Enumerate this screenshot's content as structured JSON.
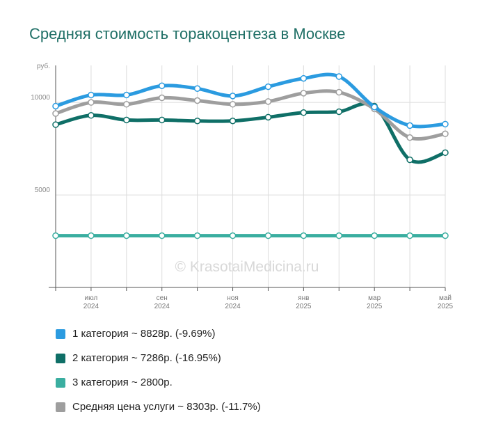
{
  "title": "Средняя стоимость торакоцентеза в Москве",
  "watermark": "© KrasotaiMedicina.ru",
  "chart_data": {
    "type": "line",
    "y_unit": "руб.",
    "ylim": [
      0,
      12000
    ],
    "y_ticks": [
      {
        "value": 5000,
        "label": "5000"
      },
      {
        "value": 10000,
        "label": "10000"
      }
    ],
    "x": [
      "2024-06",
      "2024-07",
      "2024-08",
      "2024-09",
      "2024-10",
      "2024-11",
      "2024-12",
      "2025-01",
      "2025-02",
      "2025-03",
      "2025-04",
      "2025-05"
    ],
    "x_ticks": [
      {
        "index": 1,
        "month": "июл",
        "year": "2024"
      },
      {
        "index": 3,
        "month": "сен",
        "year": "2024"
      },
      {
        "index": 5,
        "month": "ноя",
        "year": "2024"
      },
      {
        "index": 7,
        "month": "янв",
        "year": "2025"
      },
      {
        "index": 9,
        "month": "мар",
        "year": "2025"
      },
      {
        "index": 11,
        "month": "май",
        "year": "2025"
      }
    ],
    "grid": true,
    "legend_position": "bottom",
    "series": [
      {
        "name": "3 категория",
        "color": "#3aaea0",
        "values": [
          2800,
          2800,
          2800,
          2800,
          2800,
          2800,
          2800,
          2800,
          2800,
          2800,
          2800,
          2800
        ]
      },
      {
        "name": "2 категория",
        "color": "#0f6f67",
        "values": [
          8800,
          9300,
          9050,
          9050,
          9000,
          9000,
          9200,
          9450,
          9500,
          9800,
          6900,
          7286
        ]
      },
      {
        "name": "Средняя цена услуги",
        "color": "#9e9e9e",
        "values": [
          9400,
          10000,
          9900,
          10250,
          10100,
          9900,
          10050,
          10500,
          10550,
          9650,
          8100,
          8303
        ]
      },
      {
        "name": "1 категория",
        "color": "#2b9be0",
        "values": [
          9800,
          10400,
          10400,
          10900,
          10750,
          10350,
          10850,
          11300,
          11400,
          9750,
          8750,
          8828
        ]
      }
    ]
  },
  "legend": [
    {
      "color": "#2b9be0",
      "label": "1 категория ~ 8828р. (-9.69%)"
    },
    {
      "color": "#0f6f67",
      "label": "2 категория ~ 7286р. (-16.95%)"
    },
    {
      "color": "#3aaea0",
      "label": "3 категория ~ 2800р."
    },
    {
      "color": "#9e9e9e",
      "label": "Средняя цена услуги ~ 8303р. (-11.7%)"
    }
  ]
}
